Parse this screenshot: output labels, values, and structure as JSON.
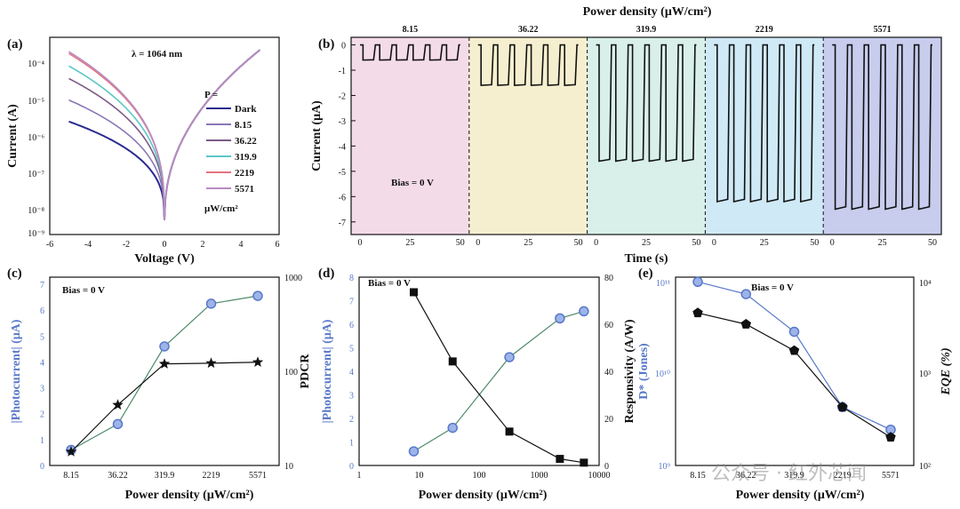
{
  "watermark": "公众号 · 红外芯闻",
  "chart_data": [
    {
      "id": "a",
      "panel_label": "(a)",
      "type": "line",
      "xlabel": "Voltage (V)",
      "ylabel": "Current (A)",
      "xlim": [
        -6,
        6
      ],
      "x_ticks": [
        "-6",
        "-4",
        "-2",
        "0",
        "2",
        "4",
        "6"
      ],
      "ylim_log10": [
        -9,
        -3.5
      ],
      "y_ticks": [
        "10⁻⁴",
        "10⁻⁵",
        "10⁻⁶",
        "10⁻⁷",
        "10⁻⁸",
        "10⁻⁹"
      ],
      "annotation": "λ = 1064 nm",
      "legend_title": "P =",
      "legend_unit": "μW/cm²",
      "series": [
        {
          "name": "Dark",
          "color": "#2b2b8f",
          "log_current_at_minus5": -5.85,
          "log_current_at_plus5": -3.85
        },
        {
          "name": "8.15",
          "color": "#8b77b8",
          "log_current_at_minus5": -5.25,
          "log_current_at_plus5": -3.85
        },
        {
          "name": "36.22",
          "color": "#7d5a86",
          "log_current_at_minus5": -4.65,
          "log_current_at_plus5": -3.85
        },
        {
          "name": "319.9",
          "color": "#5cc6c6",
          "log_current_at_minus5": -4.3,
          "log_current_at_plus5": -3.85
        },
        {
          "name": "2219",
          "color": "#e5737e",
          "log_current_at_minus5": -3.95,
          "log_current_at_plus5": -3.85
        },
        {
          "name": "5571",
          "color": "#b78cc2",
          "log_current_at_minus5": -3.9,
          "log_current_at_plus5": -3.85
        }
      ]
    },
    {
      "id": "b",
      "panel_label": "(b)",
      "type": "line",
      "title": "Power density (μW/cm²)",
      "xlabel": "Time (s)",
      "ylabel": "Current (μA)",
      "ylim": [
        -7.5,
        0.3
      ],
      "y_ticks": [
        "0",
        "-1",
        "-2",
        "-3",
        "-4",
        "-5",
        "-6",
        "-7"
      ],
      "x_ticks": [
        "0",
        "25",
        "50"
      ],
      "annotation": "Bias = 0 V",
      "segments": [
        {
          "power": "8.15",
          "photocurrent": -0.6,
          "background": "#f4dbe8"
        },
        {
          "power": "36.22",
          "photocurrent": -1.6,
          "background": "#f6efcf"
        },
        {
          "power": "319.9",
          "photocurrent": -4.6,
          "background": "#d9f0ea"
        },
        {
          "power": "2219",
          "photocurrent": -6.2,
          "background": "#cfe9f6"
        },
        {
          "power": "5571",
          "photocurrent": -6.5,
          "background": "#c8cdee"
        }
      ],
      "cycles_per_segment": 6,
      "segment_duration_s": 50
    },
    {
      "id": "c",
      "panel_label": "(c)",
      "type": "line",
      "xlabel": "Power density (μW/cm²)",
      "ylabel": "|Photocurrent| (μA)",
      "y2label": "PDCR",
      "annotation": "Bias = 0 V",
      "categories": [
        "8.15",
        "36.22",
        "319.9",
        "2219",
        "5571"
      ],
      "ylim": [
        0,
        7
      ],
      "y_ticks": [
        "0",
        "1",
        "2",
        "3",
        "4",
        "5",
        "6",
        "7"
      ],
      "y2lim_log10": [
        1,
        3
      ],
      "y2_ticks": [
        "10",
        "100",
        "1000"
      ],
      "series": [
        {
          "name": "|Photocurrent|",
          "axis": "left",
          "marker": "circle",
          "color": "#5878c8",
          "values": [
            0.6,
            1.6,
            4.6,
            6.25,
            6.55
          ]
        },
        {
          "name": "PDCR",
          "axis": "right",
          "marker": "star",
          "color": "#111111",
          "values": [
            14,
            44,
            120,
            122,
            125
          ]
        }
      ]
    },
    {
      "id": "d",
      "panel_label": "(d)",
      "type": "line",
      "xlabel": "Power density (μW/cm²)",
      "ylabel": "|Photocurrent| (μA)",
      "y2label": "Responsivity (A/W)",
      "annotation": "Bias = 0 V",
      "xscale": "log",
      "xlim_log10": [
        0,
        4
      ],
      "x_ticks": [
        "1",
        "10",
        "100",
        "1000",
        "10000"
      ],
      "ylim": [
        0,
        8
      ],
      "y_ticks": [
        "0",
        "1",
        "2",
        "3",
        "4",
        "5",
        "6",
        "7",
        "8"
      ],
      "y2lim": [
        0,
        80
      ],
      "y2_ticks": [
        "0",
        "20",
        "40",
        "60",
        "80"
      ],
      "series": [
        {
          "name": "|Photocurrent|",
          "axis": "left",
          "marker": "circle",
          "color": "#5878c8",
          "x": [
            8.15,
            36.22,
            319.9,
            2219,
            5571
          ],
          "values": [
            0.6,
            1.6,
            4.6,
            6.25,
            6.55
          ]
        },
        {
          "name": "Responsivity",
          "axis": "right",
          "marker": "square",
          "color": "#111111",
          "x": [
            8.15,
            36.22,
            319.9,
            2219,
            5571
          ],
          "values": [
            73.6,
            44.2,
            14.4,
            2.8,
            1.2
          ]
        }
      ]
    },
    {
      "id": "e",
      "panel_label": "(e)",
      "type": "line",
      "xlabel": "Power density (μW/cm²)",
      "ylabel": "D* (Jones)",
      "y2label": "EQE (%)",
      "annotation": "Bias = 0 V",
      "categories": [
        "8.15",
        "36.22",
        "319.9",
        "2219",
        "5571"
      ],
      "ylim_log10": [
        9,
        11
      ],
      "y_ticks": [
        "10¹¹",
        "10¹⁰",
        "10⁹"
      ],
      "y2lim_log10": [
        2,
        4
      ],
      "y2_ticks": [
        "10⁴",
        "10³",
        "10²"
      ],
      "series": [
        {
          "name": "D*",
          "axis": "left",
          "marker": "circle",
          "color": "#5878c8",
          "values_log10": [
            10.95,
            10.82,
            10.42,
            9.62,
            9.38
          ]
        },
        {
          "name": "EQE",
          "axis": "right",
          "marker": "pentagon",
          "color": "#111111",
          "values_log10": [
            3.62,
            3.5,
            3.22,
            2.62,
            2.3
          ]
        }
      ]
    }
  ]
}
